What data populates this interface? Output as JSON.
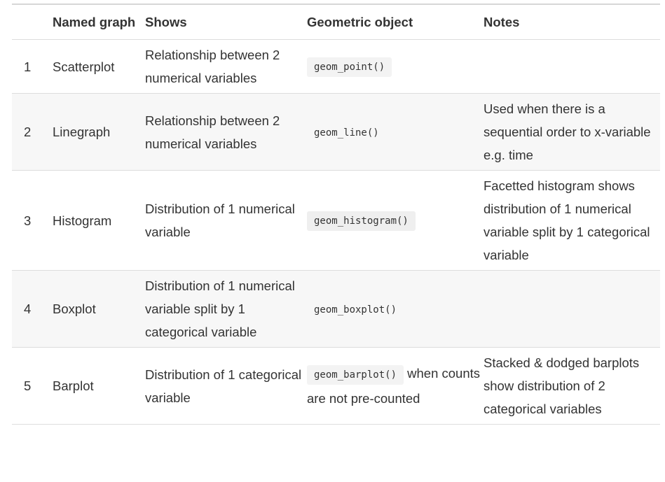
{
  "table": {
    "headers": {
      "number": "",
      "named_graph": "Named graph",
      "shows": "Shows",
      "geometric_object": "Geometric object",
      "notes": "Notes"
    },
    "rows": [
      {
        "number": "1",
        "named_graph": "Scatterplot",
        "shows": "Relationship between 2 numerical variables",
        "geom_code": "geom_point()",
        "geom_suffix": "",
        "notes": ""
      },
      {
        "number": "2",
        "named_graph": "Linegraph",
        "shows": "Relationship between 2 numerical variables",
        "geom_code": "geom_line()",
        "geom_suffix": "",
        "notes": "Used when there is a sequential order to x-variable e.g. time"
      },
      {
        "number": "3",
        "named_graph": "Histogram",
        "shows": "Distribution of 1 numerical variable",
        "geom_code": "geom_histogram()",
        "geom_suffix": "",
        "notes": "Facetted histogram shows distribution of 1 numerical variable split by 1 categorical variable"
      },
      {
        "number": "4",
        "named_graph": "Boxplot",
        "shows": "Distribution of 1 numerical variable split by 1 categorical variable",
        "geom_code": "geom_boxplot()",
        "geom_suffix": "",
        "notes": ""
      },
      {
        "number": "5",
        "named_graph": "Barplot",
        "shows": "Distribution of 1 categorical variable",
        "geom_code": "geom_barplot()",
        "geom_suffix": " when counts are not pre-counted",
        "notes": "Stacked & dodged barplots show distribution of 2 categorical variables"
      }
    ]
  }
}
